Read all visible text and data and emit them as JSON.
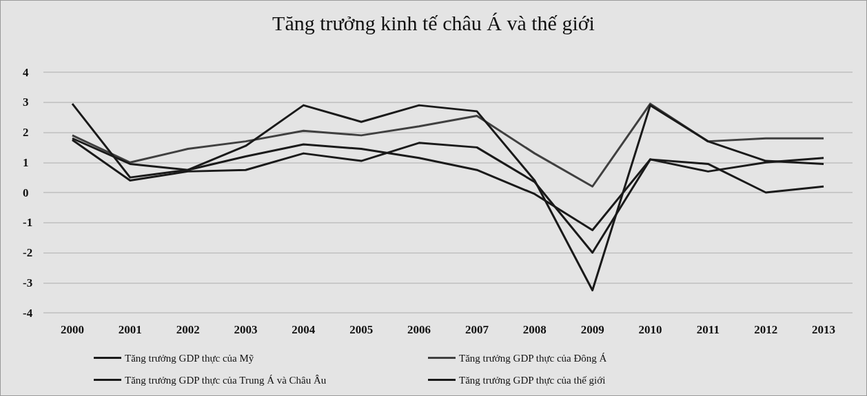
{
  "chart_data": {
    "type": "line",
    "title": "Tăng trưởng kinh tế châu Á và thế giới",
    "categories": [
      "2000",
      "2001",
      "2002",
      "2003",
      "2004",
      "2005",
      "2006",
      "2007",
      "2008",
      "2009",
      "2010",
      "2011",
      "2012",
      "2013"
    ],
    "series": [
      {
        "name": "Tăng trưởng GDP thực của Mỹ",
        "color": "#1a1a1a",
        "values": [
          1.75,
          0.4,
          0.7,
          0.75,
          1.3,
          1.05,
          1.65,
          1.5,
          0.35,
          -2.0,
          1.1,
          0.95,
          0.0,
          0.2
        ]
      },
      {
        "name": "Tăng trưởng GDP thực của Đông Á",
        "color": "#404040",
        "values": [
          1.9,
          1.0,
          1.45,
          1.7,
          2.05,
          1.9,
          2.2,
          2.55,
          1.3,
          0.2,
          2.95,
          1.7,
          1.8,
          1.8
        ]
      },
      {
        "name": "Tăng trưởng GDP thực của Trung Á và Châu Âu",
        "color": "#1a1a1a",
        "values": [
          2.95,
          0.5,
          0.75,
          1.55,
          2.9,
          2.35,
          2.9,
          2.7,
          0.4,
          -3.25,
          2.9,
          1.7,
          1.05,
          0.95
        ]
      },
      {
        "name": "Tăng trưởng GDP thực của thế giới",
        "color": "#1a1a1a",
        "values": [
          1.8,
          0.95,
          0.75,
          1.2,
          1.6,
          1.45,
          1.15,
          0.75,
          -0.05,
          -1.25,
          1.1,
          0.7,
          1.0,
          1.15
        ]
      }
    ],
    "ylim": [
      -4,
      4
    ],
    "yticks": [
      -4,
      -3,
      -2,
      -1,
      0,
      1,
      2,
      3,
      4
    ],
    "grid": "y",
    "legend": "bottom",
    "marker": "none",
    "line_style": "solid"
  }
}
